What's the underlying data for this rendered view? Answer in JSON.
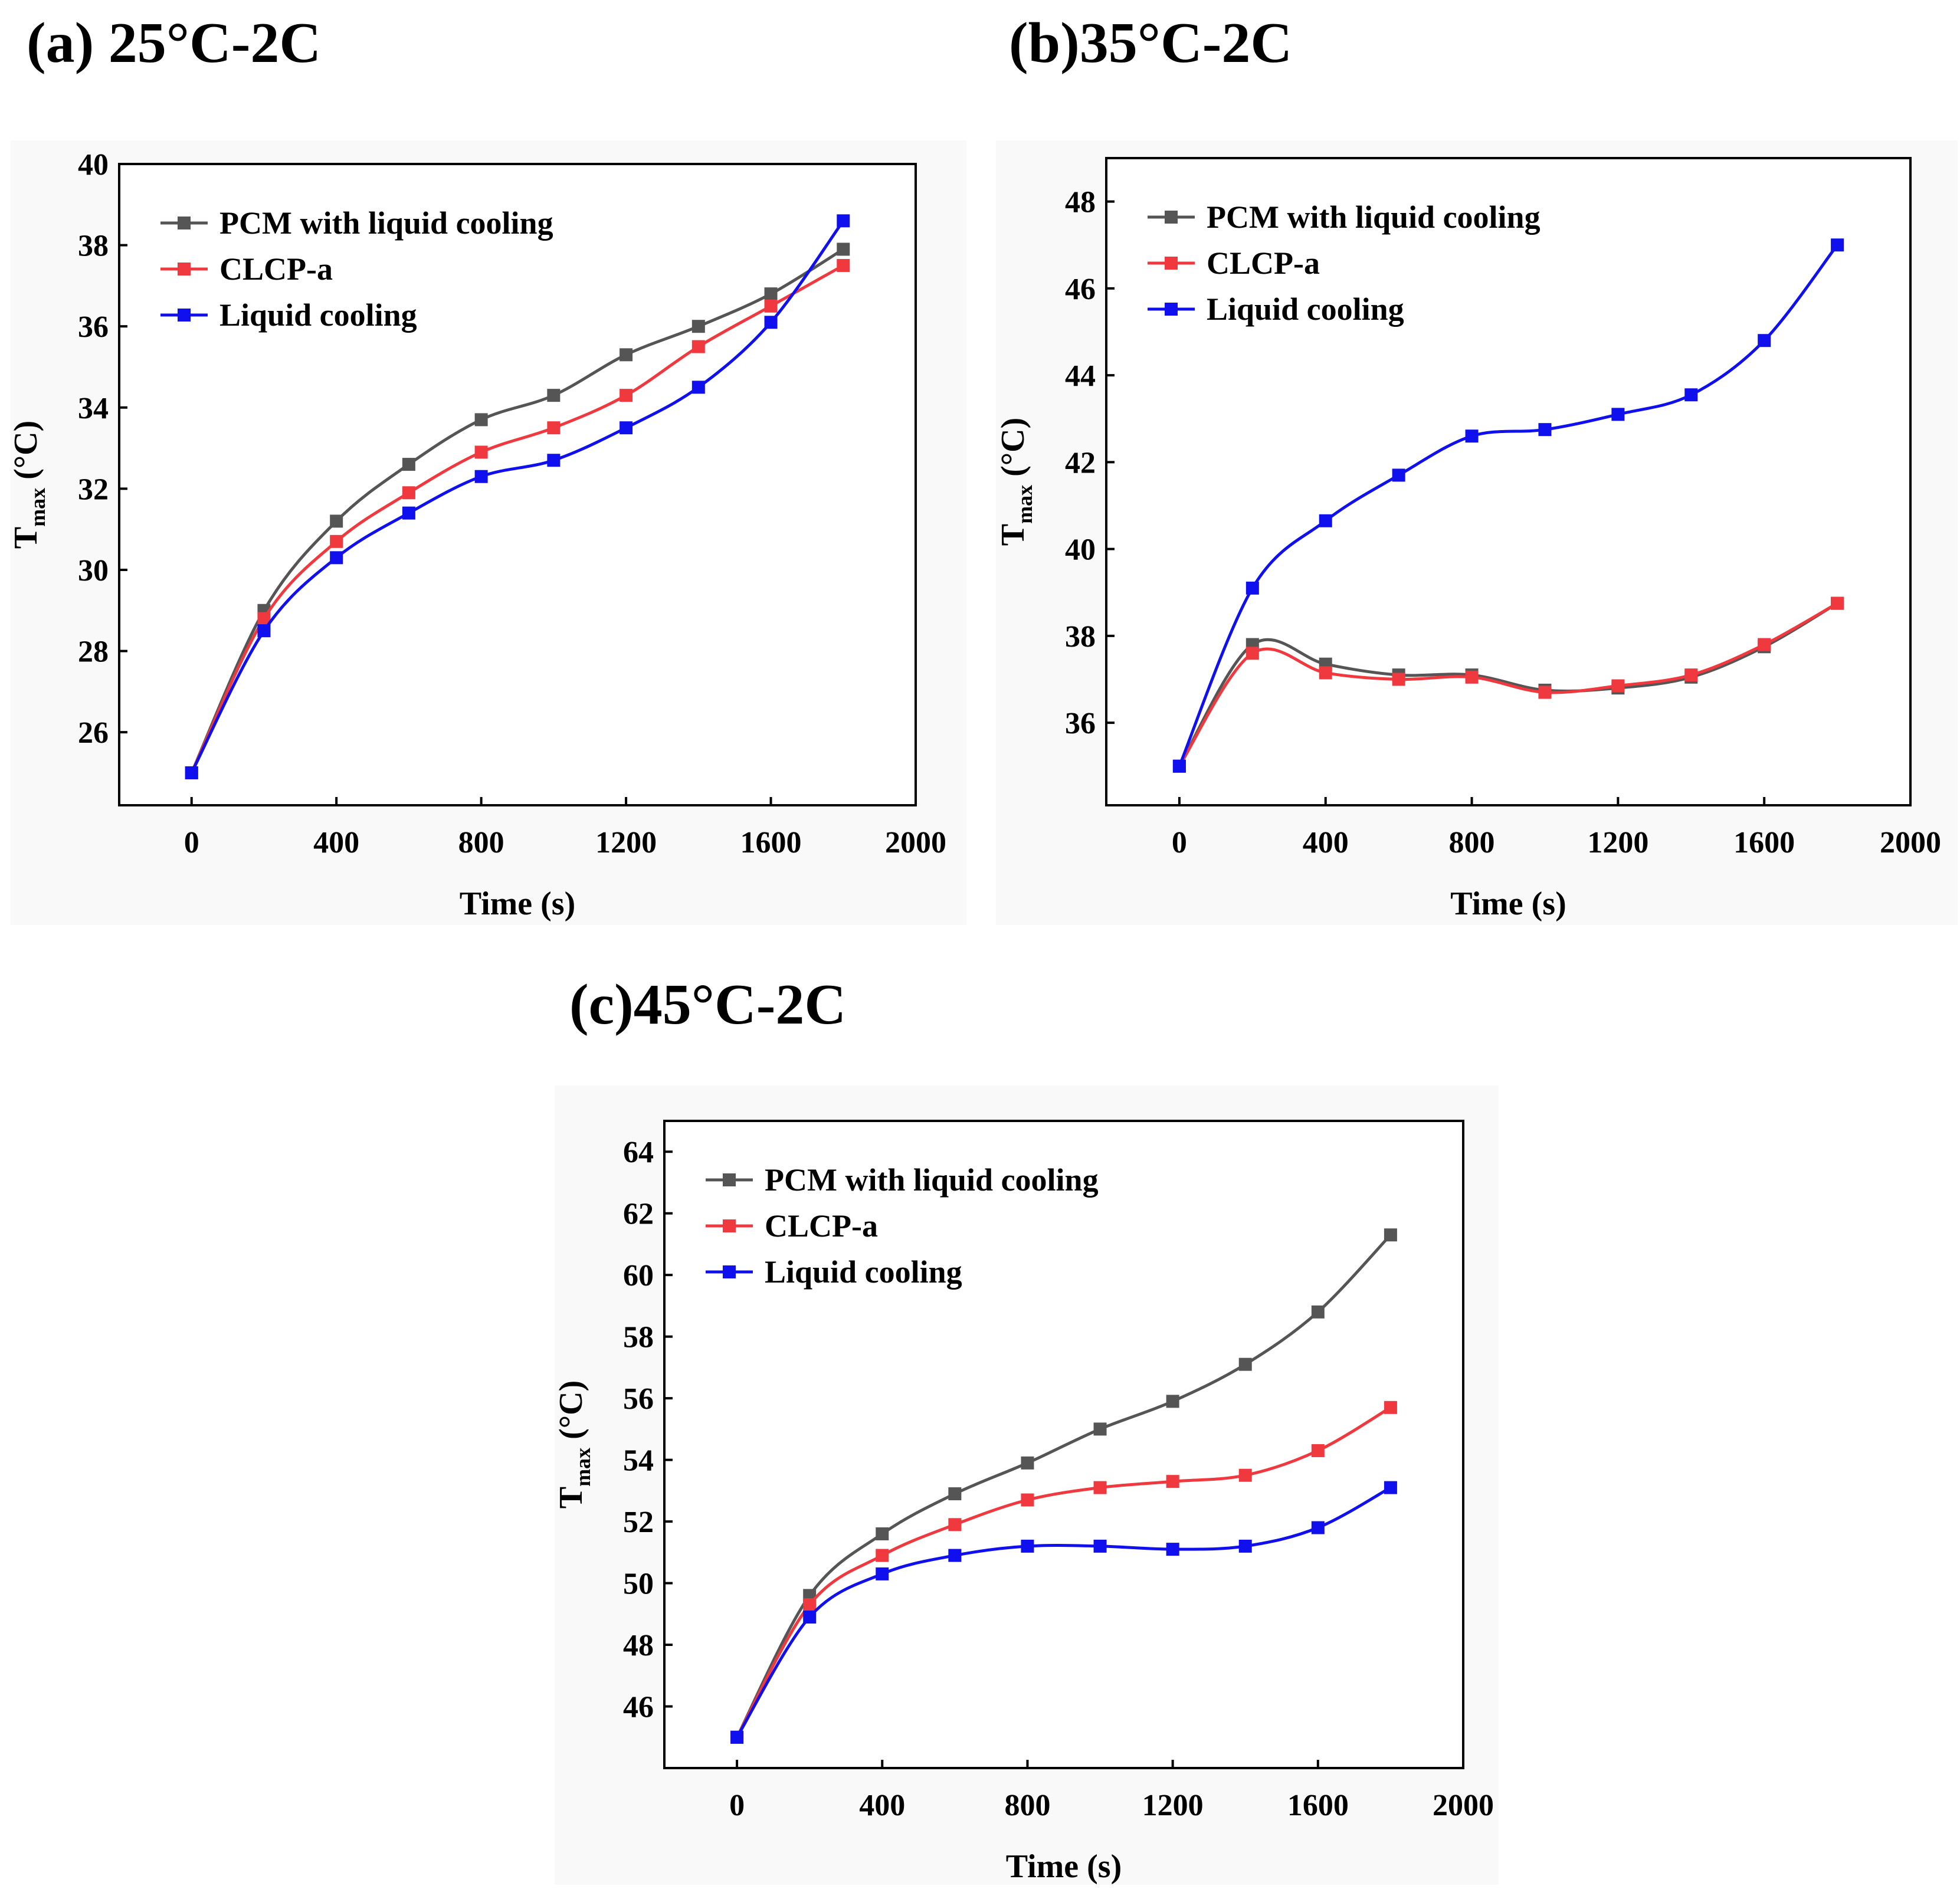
{
  "chart_data": [
    {
      "type": "line",
      "panel_title": "(a) 25°C-2C",
      "xlabel": "Time (s)",
      "ylabel_main": "T",
      "ylabel_sub": "max",
      "ylabel_unit": " (°C)",
      "xlim": [
        -200,
        2000
      ],
      "ylim": [
        24.2,
        40
      ],
      "xticks": [
        0,
        400,
        800,
        1200,
        1600,
        2000
      ],
      "yticks": [
        26,
        28,
        30,
        32,
        34,
        36,
        38,
        40
      ],
      "legend_position": "top-left",
      "x": [
        0,
        200,
        400,
        600,
        800,
        1000,
        1200,
        1400,
        1600,
        1800
      ],
      "series": [
        {
          "name": "PCM with liquid cooling",
          "color": "#555555",
          "values": [
            25.0,
            29.0,
            31.2,
            32.6,
            33.7,
            34.3,
            35.3,
            36.0,
            36.8,
            37.9
          ]
        },
        {
          "name": "CLCP-a",
          "color": "#f0393f",
          "values": [
            25.0,
            28.8,
            30.7,
            31.9,
            32.9,
            33.5,
            34.3,
            35.5,
            36.5,
            37.5
          ]
        },
        {
          "name": "Liquid cooling",
          "color": "#1010ee",
          "values": [
            25.0,
            28.5,
            30.3,
            31.4,
            32.3,
            32.7,
            33.5,
            34.5,
            36.1,
            38.6
          ]
        }
      ]
    },
    {
      "type": "line",
      "panel_title": "(b)35°C-2C",
      "xlabel": "Time (s)",
      "ylabel_main": "T",
      "ylabel_sub": "max",
      "ylabel_unit": " (°C)",
      "xlim": [
        -200,
        2000
      ],
      "ylim": [
        34.1,
        49
      ],
      "xticks": [
        0,
        400,
        800,
        1200,
        1600,
        2000
      ],
      "yticks": [
        36,
        38,
        40,
        42,
        44,
        46,
        48
      ],
      "legend_position": "top-left",
      "x": [
        0,
        200,
        400,
        600,
        800,
        1000,
        1200,
        1400,
        1600,
        1800
      ],
      "series": [
        {
          "name": "PCM with liquid cooling",
          "color": "#555555",
          "values": [
            35.0,
            37.8,
            37.35,
            37.1,
            37.1,
            36.75,
            36.8,
            37.05,
            37.75,
            38.75
          ]
        },
        {
          "name": "CLCP-a",
          "color": "#f0393f",
          "values": [
            35.0,
            37.6,
            37.15,
            37.0,
            37.05,
            36.7,
            36.85,
            37.1,
            37.8,
            38.75
          ]
        },
        {
          "name": "Liquid cooling",
          "color": "#1010ee",
          "values": [
            35.0,
            39.1,
            40.65,
            41.7,
            42.6,
            42.75,
            43.1,
            43.55,
            44.8,
            47.0
          ]
        }
      ]
    },
    {
      "type": "line",
      "panel_title": "(c)45°C-2C",
      "xlabel": "Time (s)",
      "ylabel_main": "T",
      "ylabel_sub": "max",
      "ylabel_unit": " (°C)",
      "xlim": [
        -200,
        2000
      ],
      "ylim": [
        44,
        65
      ],
      "xticks": [
        0,
        400,
        800,
        1200,
        1600,
        2000
      ],
      "yticks": [
        46,
        48,
        50,
        52,
        54,
        56,
        58,
        60,
        62,
        64
      ],
      "legend_position": "top-left",
      "x": [
        0,
        200,
        400,
        600,
        800,
        1000,
        1200,
        1400,
        1600,
        1800
      ],
      "series": [
        {
          "name": "PCM with liquid cooling",
          "color": "#555555",
          "values": [
            45.0,
            49.6,
            51.6,
            52.9,
            53.9,
            55.0,
            55.9,
            57.1,
            58.8,
            61.3
          ]
        },
        {
          "name": "CLCP-a",
          "color": "#f0393f",
          "values": [
            45.0,
            49.3,
            50.9,
            51.9,
            52.7,
            53.1,
            53.3,
            53.5,
            54.3,
            55.7
          ]
        },
        {
          "name": "Liquid cooling",
          "color": "#1010ee",
          "values": [
            45.0,
            48.9,
            50.3,
            50.9,
            51.2,
            51.2,
            51.1,
            51.2,
            51.8,
            53.1
          ]
        }
      ]
    }
  ]
}
